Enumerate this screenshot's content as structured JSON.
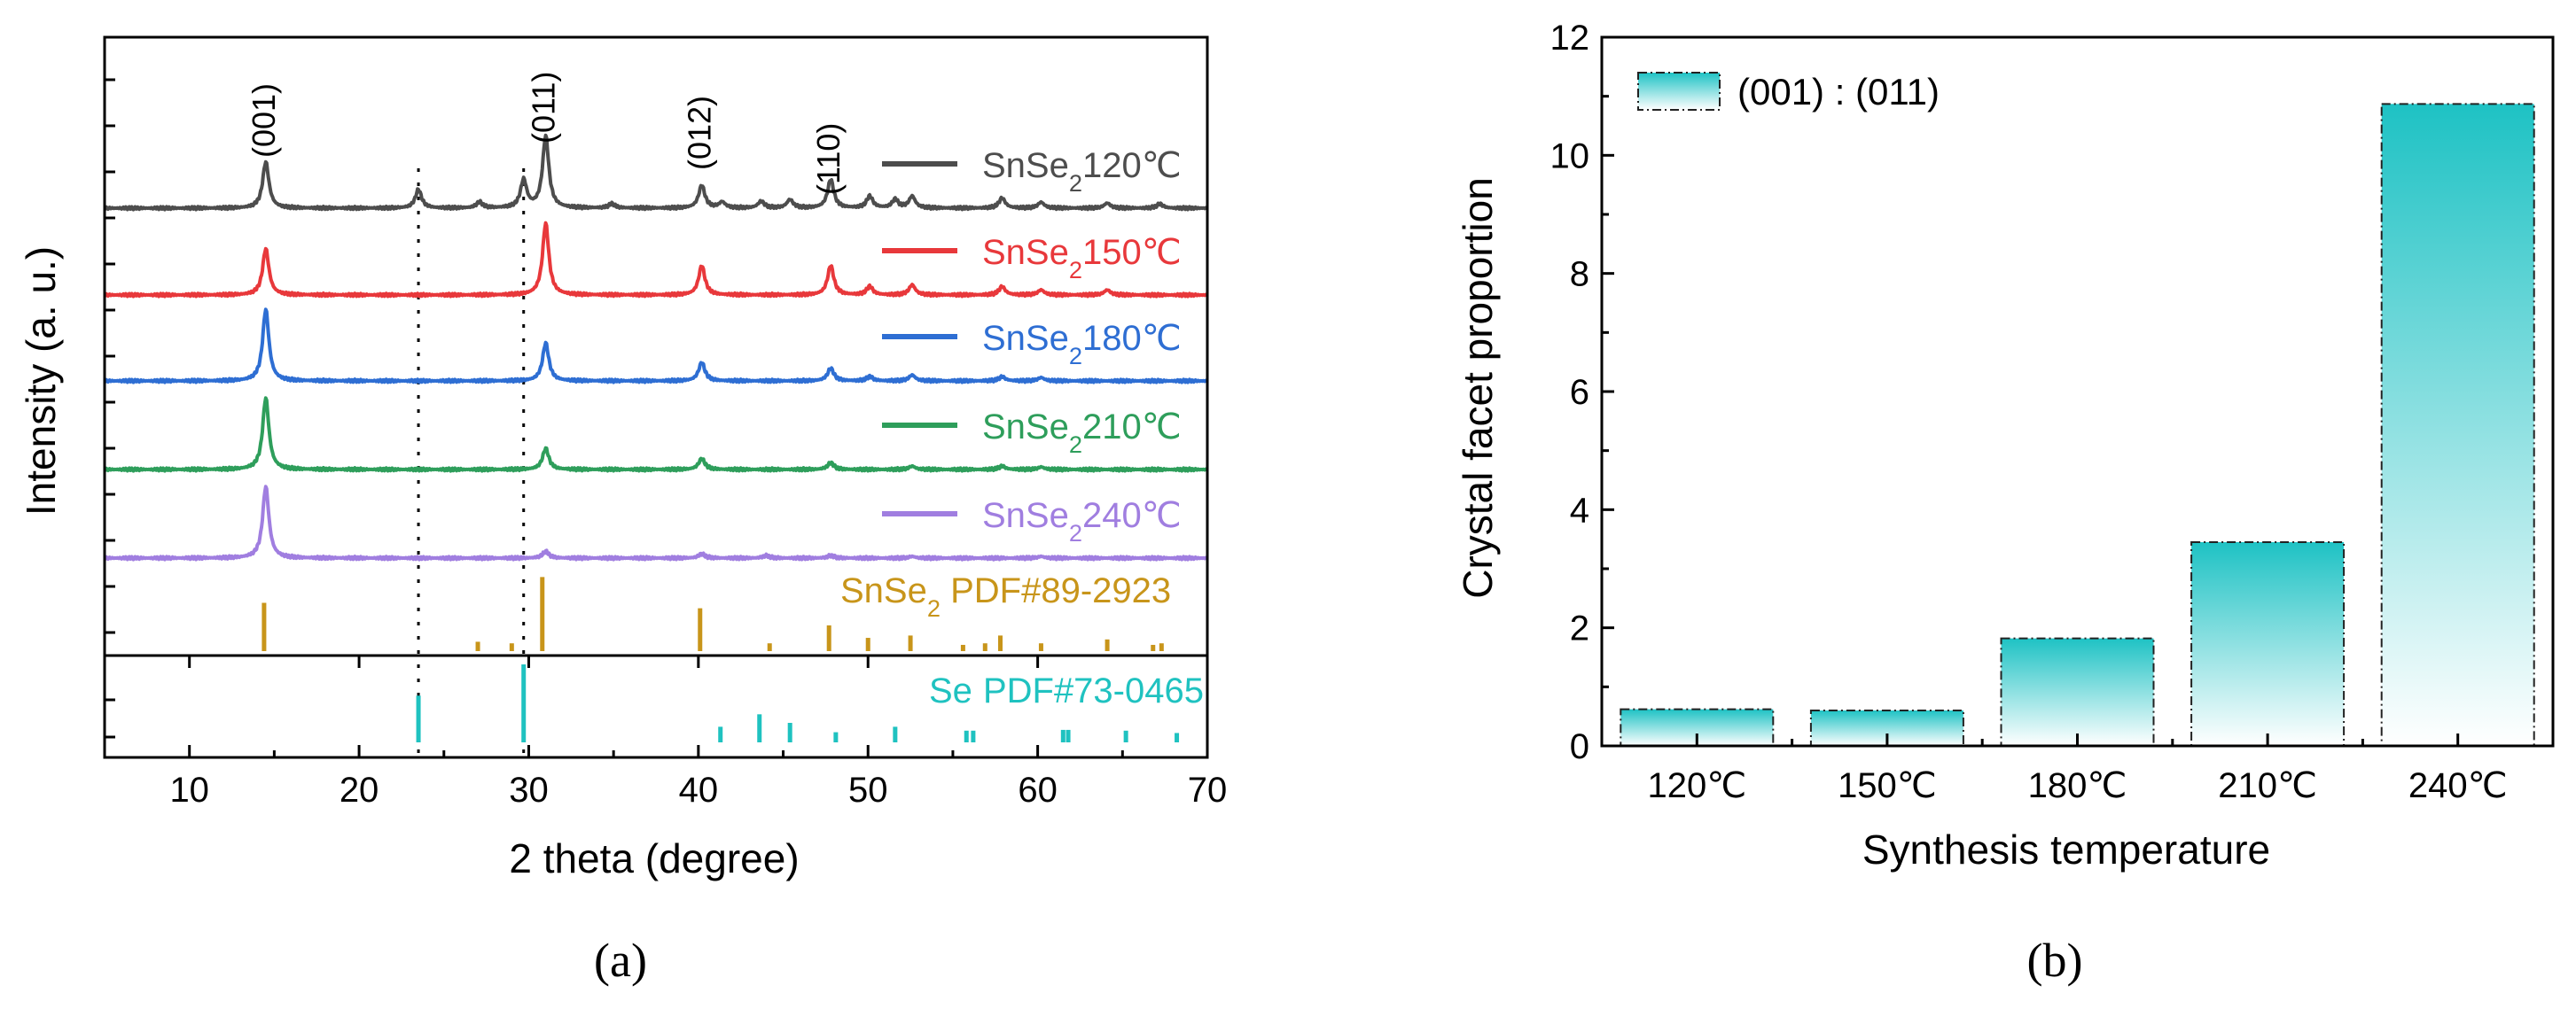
{
  "chart_data": [
    {
      "id": "a",
      "type": "line",
      "panel_label": "(a)",
      "xlabel": "2 theta (degree)",
      "ylabel": "Intensity (a. u.)",
      "xlim": [
        5,
        70
      ],
      "xticks": [
        10,
        20,
        30,
        40,
        50,
        60,
        70
      ],
      "xtick_labels": [
        "10",
        "20",
        "30",
        "40",
        "50",
        "60",
        "70"
      ],
      "dotted_reference_lines_x": [
        23.5,
        29.7
      ],
      "peak_annotations": [
        {
          "x": 14.5,
          "text": "(001)"
        },
        {
          "x": 31.0,
          "text": "(011)"
        },
        {
          "x": 40.2,
          "text": "(012)"
        },
        {
          "x": 47.8,
          "text": "(110)"
        }
      ],
      "series": [
        {
          "name": "SnSe2 120℃",
          "label_main": "SnSe",
          "label_sub": "2",
          "label_suffix": "120℃",
          "color": "#4d4d4d",
          "peaks": [
            [
              14.5,
              0.55
            ],
            [
              23.5,
              0.22
            ],
            [
              27.1,
              0.07
            ],
            [
              29.7,
              0.33
            ],
            [
              31.0,
              0.85
            ],
            [
              34.9,
              0.05
            ],
            [
              40.2,
              0.27
            ],
            [
              41.4,
              0.07
            ],
            [
              43.7,
              0.08
            ],
            [
              45.4,
              0.1
            ],
            [
              47.8,
              0.34
            ],
            [
              50.1,
              0.14
            ],
            [
              51.6,
              0.1
            ],
            [
              52.6,
              0.14
            ],
            [
              57.9,
              0.12
            ],
            [
              60.2,
              0.07
            ],
            [
              64.1,
              0.06
            ],
            [
              67.2,
              0.05
            ]
          ]
        },
        {
          "name": "SnSe2 150℃",
          "label_main": "SnSe",
          "label_sub": "2",
          "label_suffix": "150℃",
          "color": "#e8383b",
          "peaks": [
            [
              14.5,
              0.55
            ],
            [
              31.0,
              0.85
            ],
            [
              40.2,
              0.35
            ],
            [
              47.8,
              0.35
            ],
            [
              50.1,
              0.1
            ],
            [
              52.6,
              0.12
            ],
            [
              57.9,
              0.1
            ],
            [
              60.2,
              0.06
            ],
            [
              64.1,
              0.06
            ]
          ]
        },
        {
          "name": "SnSe2 180℃",
          "label_main": "SnSe",
          "label_sub": "2",
          "label_suffix": "180℃",
          "color": "#2e6ed3",
          "peaks": [
            [
              14.5,
              0.85
            ],
            [
              31.0,
              0.45
            ],
            [
              40.2,
              0.22
            ],
            [
              47.8,
              0.15
            ],
            [
              50.1,
              0.05
            ],
            [
              52.6,
              0.07
            ],
            [
              57.9,
              0.05
            ],
            [
              60.2,
              0.04
            ]
          ]
        },
        {
          "name": "SnSe2 210℃",
          "label_main": "SnSe",
          "label_sub": "2",
          "label_suffix": "210℃",
          "color": "#2e9e5b",
          "peaks": [
            [
              14.5,
              0.85
            ],
            [
              31.0,
              0.25
            ],
            [
              40.2,
              0.13
            ],
            [
              47.8,
              0.08
            ],
            [
              52.6,
              0.04
            ],
            [
              57.9,
              0.04
            ],
            [
              60.2,
              0.03
            ]
          ]
        },
        {
          "name": "SnSe2 240℃",
          "label_main": "SnSe",
          "label_sub": "2",
          "label_suffix": "240℃",
          "color": "#a07ee0",
          "peaks": [
            [
              14.5,
              0.85
            ],
            [
              31.0,
              0.08
            ],
            [
              40.2,
              0.05
            ],
            [
              44.0,
              0.03
            ],
            [
              47.8,
              0.03
            ],
            [
              52.6,
              0.02
            ],
            [
              60.2,
              0.02
            ]
          ]
        }
      ],
      "reference_patterns": [
        {
          "name": "SnSe2 PDF#89-2923",
          "label_main": "SnSe",
          "label_sub": "2",
          "label_suffix": "PDF#89-2923",
          "color": "#c8951a",
          "sticks": [
            [
              14.4,
              0.62
            ],
            [
              27.0,
              0.12
            ],
            [
              29.0,
              0.1
            ],
            [
              30.8,
              0.95
            ],
            [
              40.1,
              0.55
            ],
            [
              44.2,
              0.1
            ],
            [
              47.7,
              0.33
            ],
            [
              50.0,
              0.17
            ],
            [
              52.5,
              0.2
            ],
            [
              55.6,
              0.08
            ],
            [
              56.9,
              0.1
            ],
            [
              57.8,
              0.2
            ],
            [
              60.2,
              0.1
            ],
            [
              64.1,
              0.15
            ],
            [
              66.8,
              0.08
            ],
            [
              67.3,
              0.1
            ]
          ]
        },
        {
          "name": "Se PDF#73-0465",
          "label_main": "Se",
          "label_sub": "",
          "label_suffix": "PDF#73-0465",
          "color": "#1fc2c0",
          "sticks": [
            [
              23.5,
              0.6
            ],
            [
              29.7,
              1.0
            ],
            [
              41.3,
              0.2
            ],
            [
              43.6,
              0.36
            ],
            [
              45.4,
              0.25
            ],
            [
              48.1,
              0.13
            ],
            [
              51.6,
              0.2
            ],
            [
              55.8,
              0.15
            ],
            [
              56.2,
              0.15
            ],
            [
              61.5,
              0.16
            ],
            [
              61.8,
              0.16
            ],
            [
              65.2,
              0.15
            ],
            [
              68.2,
              0.12
            ]
          ]
        }
      ]
    },
    {
      "id": "b",
      "type": "bar",
      "panel_label": "(b)",
      "xlabel": "Synthesis temperature",
      "ylabel": "Crystal facet proportion",
      "categories": [
        "120℃",
        "150℃",
        "180℃",
        "210℃",
        "240℃"
      ],
      "values": [
        0.62,
        0.6,
        1.82,
        3.45,
        10.87
      ],
      "ylim": [
        0,
        12
      ],
      "yticks": [
        0,
        2,
        4,
        6,
        8,
        10,
        12
      ],
      "ytick_labels": [
        "0",
        "2",
        "4",
        "6",
        "8",
        "10",
        "12"
      ],
      "legend": "(001) : (011)",
      "legend_position": "top-left",
      "bar_color_top": "#1ec2c4",
      "bar_color_bottom": "#ffffff"
    }
  ]
}
